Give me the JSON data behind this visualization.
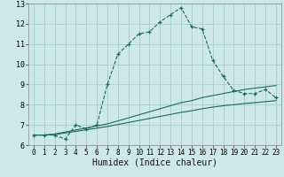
{
  "xlabel": "Humidex (Indice chaleur)",
  "bg_color": "#cce8e8",
  "grid_color": "#aacccc",
  "line_color": "#1a6b5a",
  "xlim": [
    -0.5,
    23.5
  ],
  "ylim": [
    6,
    13
  ],
  "xticks": [
    0,
    1,
    2,
    3,
    4,
    5,
    6,
    7,
    8,
    9,
    10,
    11,
    12,
    13,
    14,
    15,
    16,
    17,
    18,
    19,
    20,
    21,
    22,
    23
  ],
  "yticks": [
    6,
    7,
    8,
    9,
    10,
    11,
    12,
    13
  ],
  "line1_x": [
    0,
    1,
    2,
    3,
    4,
    5,
    6,
    7,
    8,
    9,
    10,
    11,
    12,
    13,
    14,
    15,
    16,
    17,
    18,
    19,
    20,
    21,
    22,
    23
  ],
  "line1_y": [
    6.5,
    6.5,
    6.5,
    6.3,
    7.0,
    6.8,
    7.0,
    9.0,
    10.5,
    11.0,
    11.5,
    11.6,
    12.1,
    12.45,
    12.8,
    11.85,
    11.75,
    10.2,
    9.4,
    8.7,
    8.55,
    8.55,
    8.75,
    8.35
  ],
  "line2_x": [
    0,
    1,
    2,
    3,
    4,
    5,
    6,
    7,
    8,
    9,
    10,
    11,
    12,
    13,
    14,
    15,
    16,
    17,
    18,
    19,
    20,
    21,
    22,
    23
  ],
  "line2_y": [
    6.5,
    6.5,
    6.55,
    6.65,
    6.75,
    6.85,
    6.95,
    7.05,
    7.2,
    7.35,
    7.5,
    7.65,
    7.8,
    7.95,
    8.1,
    8.2,
    8.35,
    8.45,
    8.55,
    8.65,
    8.75,
    8.82,
    8.88,
    8.95
  ],
  "line3_x": [
    0,
    1,
    2,
    3,
    4,
    5,
    6,
    7,
    8,
    9,
    10,
    11,
    12,
    13,
    14,
    15,
    16,
    17,
    18,
    19,
    20,
    21,
    22,
    23
  ],
  "line3_y": [
    6.5,
    6.5,
    6.52,
    6.6,
    6.68,
    6.76,
    6.84,
    6.92,
    7.02,
    7.12,
    7.22,
    7.32,
    7.42,
    7.52,
    7.62,
    7.7,
    7.8,
    7.88,
    7.95,
    8.0,
    8.06,
    8.1,
    8.15,
    8.2
  ],
  "xlabel_fontsize": 7,
  "tick_fontsize": 5.5
}
